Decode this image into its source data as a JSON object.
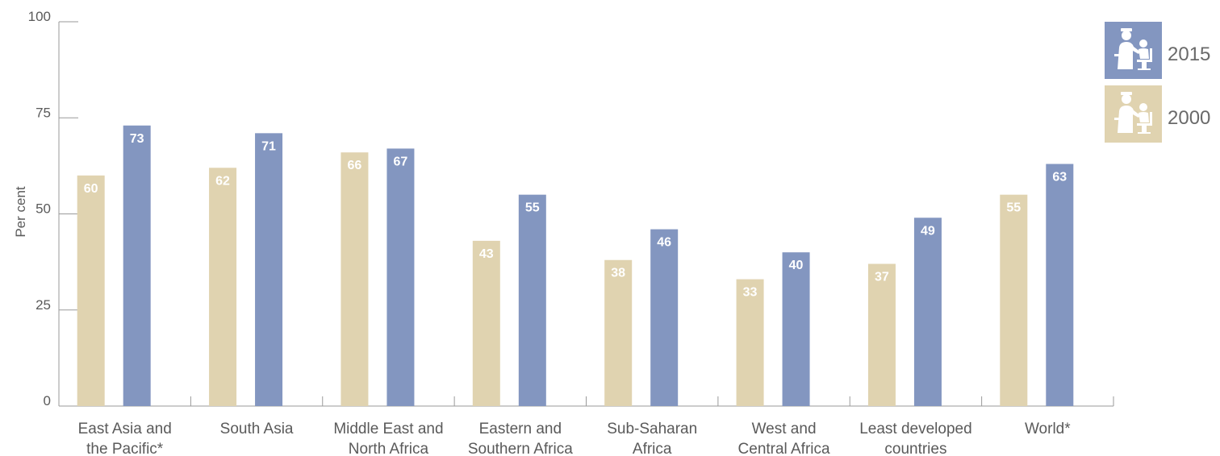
{
  "chart_data": {
    "type": "bar",
    "ylabel": "Per cent",
    "ylim": [
      0,
      100
    ],
    "yticks": [
      0,
      25,
      50,
      75,
      100
    ],
    "categories": [
      [
        "East Asia and",
        "the Pacific*"
      ],
      [
        "South Asia"
      ],
      [
        "Middle East and",
        "North Africa"
      ],
      [
        "Eastern and",
        "Southern Africa"
      ],
      [
        "Sub-Saharan",
        "Africa"
      ],
      [
        "West and",
        "Central Africa"
      ],
      [
        "Least developed",
        "countries"
      ],
      [
        "World*"
      ]
    ],
    "series": [
      {
        "name": "2000",
        "color": "#e0d3b0",
        "values": [
          60,
          62,
          66,
          43,
          38,
          33,
          37,
          55
        ]
      },
      {
        "name": "2015",
        "color": "#8396c0",
        "values": [
          73,
          71,
          67,
          55,
          46,
          40,
          49,
          63
        ]
      }
    ],
    "legend": {
      "placement": "top-right",
      "items": [
        {
          "label": "2015",
          "color": "#8396c0",
          "icon": "health-worker-child-icon"
        },
        {
          "label": "2000",
          "color": "#e0d3b0",
          "icon": "health-worker-child-icon"
        }
      ]
    },
    "grid": false
  }
}
